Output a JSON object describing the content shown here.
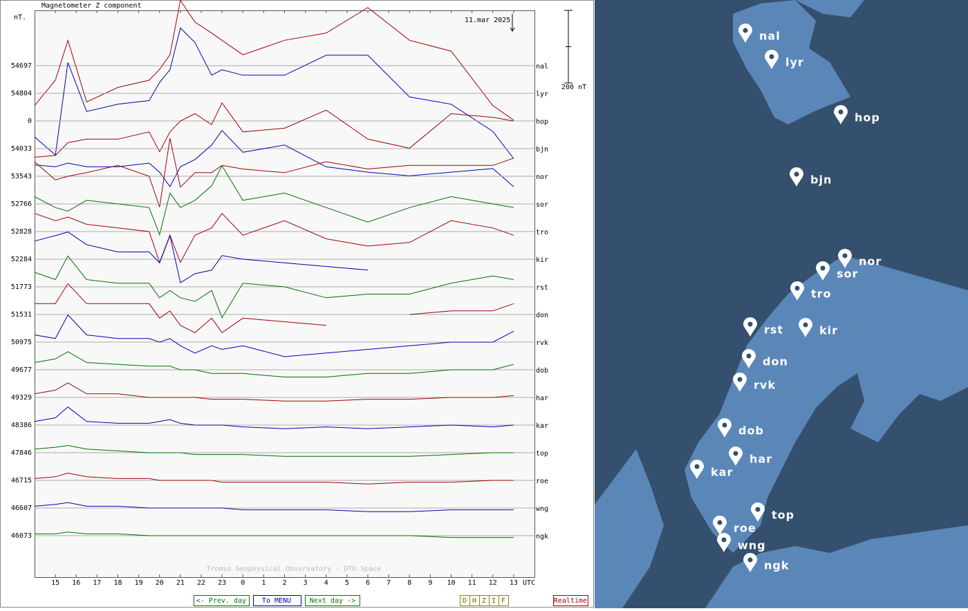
{
  "chart_data": {
    "type": "line",
    "title": "Magnetometer Z component",
    "y_unit": "nT.",
    "date": "11.mar 2025",
    "x_unit": "UTC",
    "watermark": "Tromso Geophysical Observatory - DTU Space",
    "scale_bar": {
      "value": 200,
      "label": "200 nT"
    },
    "xlim": [
      14,
      38
    ],
    "xticks": [
      15,
      16,
      17,
      18,
      19,
      20,
      21,
      22,
      23,
      {
        "value": 24,
        "label": "0"
      },
      {
        "value": 25,
        "label": "1"
      },
      {
        "value": 26,
        "label": "2"
      },
      {
        "value": 27,
        "label": "3"
      },
      {
        "value": 28,
        "label": "4"
      },
      {
        "value": 29,
        "label": "5"
      },
      {
        "value": 30,
        "label": "6"
      },
      {
        "value": 31,
        "label": "7"
      },
      {
        "value": 32,
        "label": "8"
      },
      {
        "value": 33,
        "label": "9"
      },
      {
        "value": 34,
        "label": "10"
      },
      {
        "value": 35,
        "label": "11"
      },
      {
        "value": 36,
        "label": "12"
      },
      {
        "value": 37,
        "label": "13"
      }
    ],
    "grid": true,
    "x": [
      14,
      15,
      15.6,
      16.5,
      18,
      19.5,
      20,
      20.5,
      21,
      21.7,
      22.5,
      23,
      24,
      26,
      28,
      30,
      32,
      34,
      36,
      37
    ],
    "series": [
      {
        "name": "nal",
        "baseline": 54697,
        "color": "#a00000",
        "values": [
          -110,
          -40,
          70,
          -100,
          -60,
          -40,
          -10,
          30,
          180,
          120,
          90,
          70,
          30,
          70,
          90,
          160,
          70,
          40,
          -110,
          -150
        ]
      },
      {
        "name": "lyr",
        "baseline": 54804,
        "color": "#0000b0",
        "values": [
          -120,
          -170,
          85,
          -50,
          -30,
          -20,
          30,
          65,
          180,
          140,
          50,
          65,
          50,
          50,
          105,
          105,
          -10,
          -30,
          -105,
          -180
        ]
      },
      {
        "name": "hop",
        "baseline": 0,
        "color": "#a00000",
        "values": [
          -100,
          -95,
          -60,
          -50,
          -50,
          -30,
          -85,
          -30,
          0,
          20,
          -10,
          50,
          -30,
          -20,
          30,
          -50,
          -75,
          20,
          10,
          0
        ]
      },
      {
        "name": "bjn",
        "baseline": 54033,
        "color": "#0000b0",
        "values": [
          -45,
          -50,
          -40,
          -50,
          -50,
          -40,
          -65,
          -105,
          -50,
          -30,
          10,
          50,
          -10,
          10,
          -50,
          -65,
          -75,
          -65,
          -55,
          -105
        ]
      },
      {
        "name": "nor",
        "baseline": 53543,
        "color": "#a00000",
        "values": [
          40,
          -10,
          0,
          10,
          30,
          0,
          -85,
          105,
          -30,
          10,
          10,
          30,
          20,
          10,
          40,
          20,
          30,
          30,
          30,
          50
        ]
      },
      {
        "name": "sor",
        "baseline": 52766,
        "color": "#007000",
        "values": [
          20,
          -10,
          -20,
          10,
          0,
          -10,
          -85,
          30,
          -10,
          10,
          50,
          105,
          10,
          30,
          -10,
          -50,
          -10,
          20,
          0,
          -10
        ]
      },
      {
        "name": "tro",
        "baseline": 52828,
        "color": "#a00000",
        "values": [
          50,
          30,
          40,
          20,
          10,
          0,
          -85,
          -10,
          -85,
          -10,
          10,
          50,
          -10,
          30,
          -20,
          -40,
          -30,
          30,
          10,
          -10
        ]
      },
      {
        "name": "kir",
        "baseline": 52284,
        "color": "#0000b0",
        "values": [
          50,
          65,
          75,
          40,
          20,
          20,
          -10,
          65,
          -65,
          -40,
          -30,
          10,
          0,
          -10,
          -20,
          -30,
          null,
          null,
          null,
          null
        ]
      },
      {
        "name": "rst",
        "baseline": 51773,
        "color": "#007000",
        "values": [
          40,
          20,
          85,
          20,
          10,
          10,
          -30,
          -10,
          -30,
          -40,
          -10,
          -85,
          10,
          0,
          -30,
          -20,
          -20,
          10,
          30,
          20
        ]
      },
      {
        "name": "don",
        "baseline": 51531,
        "color": "#a00000",
        "values": [
          30,
          30,
          85,
          30,
          30,
          30,
          -10,
          10,
          -30,
          -50,
          -10,
          -50,
          -10,
          -20,
          -30,
          null,
          0,
          10,
          10,
          30
        ]
      },
      {
        "name": "rvk",
        "baseline": 50975,
        "color": "#0000b0",
        "values": [
          20,
          10,
          75,
          20,
          10,
          10,
          0,
          10,
          -10,
          -30,
          -10,
          -20,
          -10,
          -40,
          -30,
          -20,
          -10,
          0,
          0,
          30
        ]
      },
      {
        "name": "dob",
        "baseline": 49677,
        "color": "#007000",
        "values": [
          20,
          30,
          50,
          20,
          15,
          10,
          10,
          10,
          0,
          0,
          -10,
          -10,
          -10,
          -20,
          -20,
          -10,
          -10,
          0,
          0,
          15
        ]
      },
      {
        "name": "har",
        "baseline": 49329,
        "color": "#a00000",
        "values": [
          10,
          20,
          40,
          10,
          10,
          0,
          0,
          0,
          0,
          0,
          -5,
          -5,
          -5,
          -10,
          -10,
          -5,
          -5,
          0,
          0,
          5
        ]
      },
      {
        "name": "kar",
        "baseline": 48386,
        "color": "#0000b0",
        "values": [
          10,
          20,
          50,
          10,
          5,
          5,
          10,
          15,
          5,
          0,
          0,
          0,
          -5,
          -10,
          -5,
          -10,
          -5,
          0,
          -5,
          0
        ]
      },
      {
        "name": "top",
        "baseline": 47846,
        "color": "#007000",
        "values": [
          10,
          15,
          20,
          10,
          5,
          0,
          0,
          0,
          0,
          -5,
          -5,
          -5,
          -5,
          -10,
          -10,
          -10,
          -10,
          -5,
          0,
          0
        ]
      },
      {
        "name": "roe",
        "baseline": 46715,
        "color": "#a00000",
        "values": [
          5,
          10,
          20,
          10,
          5,
          5,
          0,
          0,
          0,
          0,
          0,
          -5,
          -5,
          -5,
          -5,
          -10,
          -5,
          -5,
          0,
          0
        ]
      },
      {
        "name": "wng",
        "baseline": 46607,
        "color": "#0000b0",
        "values": [
          5,
          10,
          15,
          5,
          5,
          0,
          0,
          0,
          0,
          0,
          0,
          0,
          -5,
          -5,
          -5,
          -10,
          -10,
          -5,
          -5,
          -5
        ]
      },
      {
        "name": "ngk",
        "baseline": 46073,
        "color": "#007000",
        "values": [
          5,
          5,
          10,
          5,
          5,
          0,
          0,
          0,
          0,
          0,
          0,
          0,
          0,
          0,
          0,
          0,
          0,
          -5,
          -5,
          -5
        ]
      }
    ]
  },
  "controls": {
    "prev": "<- Prev. day",
    "menu": "To MENU",
    "next": "Next day ->",
    "components": [
      "D",
      "H",
      "Z",
      "I",
      "F"
    ],
    "realtime": "Realtime"
  }
}
